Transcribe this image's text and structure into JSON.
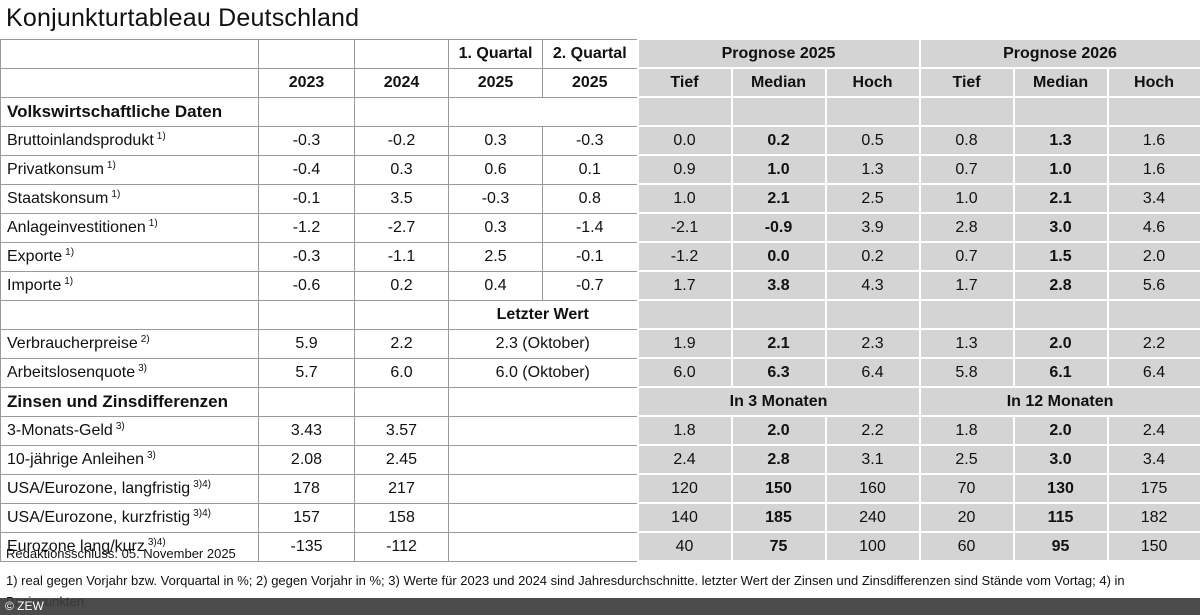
{
  "title": "Konjunkturtableau Deutschland",
  "header": {
    "years": [
      "2023",
      "2024"
    ],
    "quarters": [
      "1. Quartal",
      "2. Quartal"
    ],
    "quarter_years": [
      "2025",
      "2025"
    ],
    "forecasts": [
      {
        "title": "Prognose 2025",
        "columns": [
          "Tief",
          "Median",
          "Hoch"
        ]
      },
      {
        "title": "Prognose 2026",
        "columns": [
          "Tief",
          "Median",
          "Hoch"
        ]
      }
    ]
  },
  "sections": [
    {
      "heading": "Volkswirtschaftliche Daten",
      "rows": [
        {
          "label": "Bruttoinlandsprodukt",
          "note": "1)",
          "values": [
            "-0.3",
            "-0.2",
            "0.3",
            "-0.3"
          ],
          "forecast": [
            "0.0",
            "0.2",
            "0.5",
            "0.8",
            "1.3",
            "1.6"
          ]
        },
        {
          "label": "Privatkonsum",
          "note": "1)",
          "values": [
            "-0.4",
            "0.3",
            "0.6",
            "0.1"
          ],
          "forecast": [
            "0.9",
            "1.0",
            "1.3",
            "0.7",
            "1.0",
            "1.6"
          ]
        },
        {
          "label": "Staatskonsum",
          "note": "1)",
          "values": [
            "-0.1",
            "3.5",
            "-0.3",
            "0.8"
          ],
          "forecast": [
            "1.0",
            "2.1",
            "2.5",
            "1.0",
            "2.1",
            "3.4"
          ]
        },
        {
          "label": "Anlageinvestitionen",
          "note": "1)",
          "values": [
            "-1.2",
            "-2.7",
            "0.3",
            "-1.4"
          ],
          "forecast": [
            "-2.1",
            "-0.9",
            "3.9",
            "2.8",
            "3.0",
            "4.6"
          ]
        },
        {
          "label": "Exporte",
          "note": "1)",
          "values": [
            "-0.3",
            "-1.1",
            "2.5",
            "-0.1"
          ],
          "forecast": [
            "-1.2",
            "0.0",
            "0.2",
            "0.7",
            "1.5",
            "2.0"
          ]
        },
        {
          "label": "Importe",
          "note": "1)",
          "values": [
            "-0.6",
            "0.2",
            "0.4",
            "-0.7"
          ],
          "forecast": [
            "1.7",
            "3.8",
            "4.3",
            "1.7",
            "2.8",
            "5.6"
          ]
        }
      ]
    },
    {
      "subheading": "Letzter Wert",
      "rows": [
        {
          "label": "Verbraucherpreise",
          "note": "2)",
          "values": [
            "5.9",
            "2.2"
          ],
          "latest": "2.3 (Oktober)",
          "forecast": [
            "1.9",
            "2.1",
            "2.3",
            "1.3",
            "2.0",
            "2.2"
          ]
        },
        {
          "label": "Arbeitslosenquote",
          "note": "3)",
          "values": [
            "5.7",
            "6.0"
          ],
          "latest": "6.0 (Oktober)",
          "forecast": [
            "6.0",
            "6.3",
            "6.4",
            "5.8",
            "6.1",
            "6.4"
          ]
        }
      ]
    },
    {
      "heading": "Zinsen und Zinsdifferenzen",
      "forecast_headings": [
        "In 3 Monaten",
        "In 12 Monaten"
      ],
      "rows": [
        {
          "label": "3-Monats-Geld",
          "note": "3)",
          "values": [
            "3.43",
            "3.57"
          ],
          "forecast": [
            "1.8",
            "2.0",
            "2.2",
            "1.8",
            "2.0",
            "2.4"
          ]
        },
        {
          "label": "10-jährige Anleihen",
          "note": "3)",
          "values": [
            "2.08",
            "2.45"
          ],
          "forecast": [
            "2.4",
            "2.8",
            "3.1",
            "2.5",
            "3.0",
            "3.4"
          ]
        },
        {
          "label": "USA/Eurozone, langfristig",
          "note": "3)4)",
          "values": [
            "178",
            "217"
          ],
          "forecast": [
            "120",
            "150",
            "160",
            "70",
            "130",
            "175"
          ]
        },
        {
          "label": "USA/Eurozone, kurzfristig",
          "note": "3)4)",
          "values": [
            "157",
            "158"
          ],
          "forecast": [
            "140",
            "185",
            "240",
            "20",
            "115",
            "182"
          ]
        },
        {
          "label": "Eurozone lang/kurz",
          "note": "3)4)",
          "values": [
            "-135",
            "-112"
          ],
          "forecast": [
            "40",
            "75",
            "100",
            "60",
            "95",
            "150"
          ]
        }
      ]
    }
  ],
  "footer": {
    "stamp": "Redaktionsschluss: 05. November 2025",
    "notes": "1) real gegen Vorjahr bzw. Vorquartal in %; 2) gegen Vorjahr in %; 3) Werte für 2023 und 2024 sind Jahresdurchschnitte. letzter Wert der Zinsen und Zinsdifferenzen sind Stände vom Vortag; 4) in",
    "notes_cont": "Basispunkten",
    "copyright": "© ZEW"
  }
}
